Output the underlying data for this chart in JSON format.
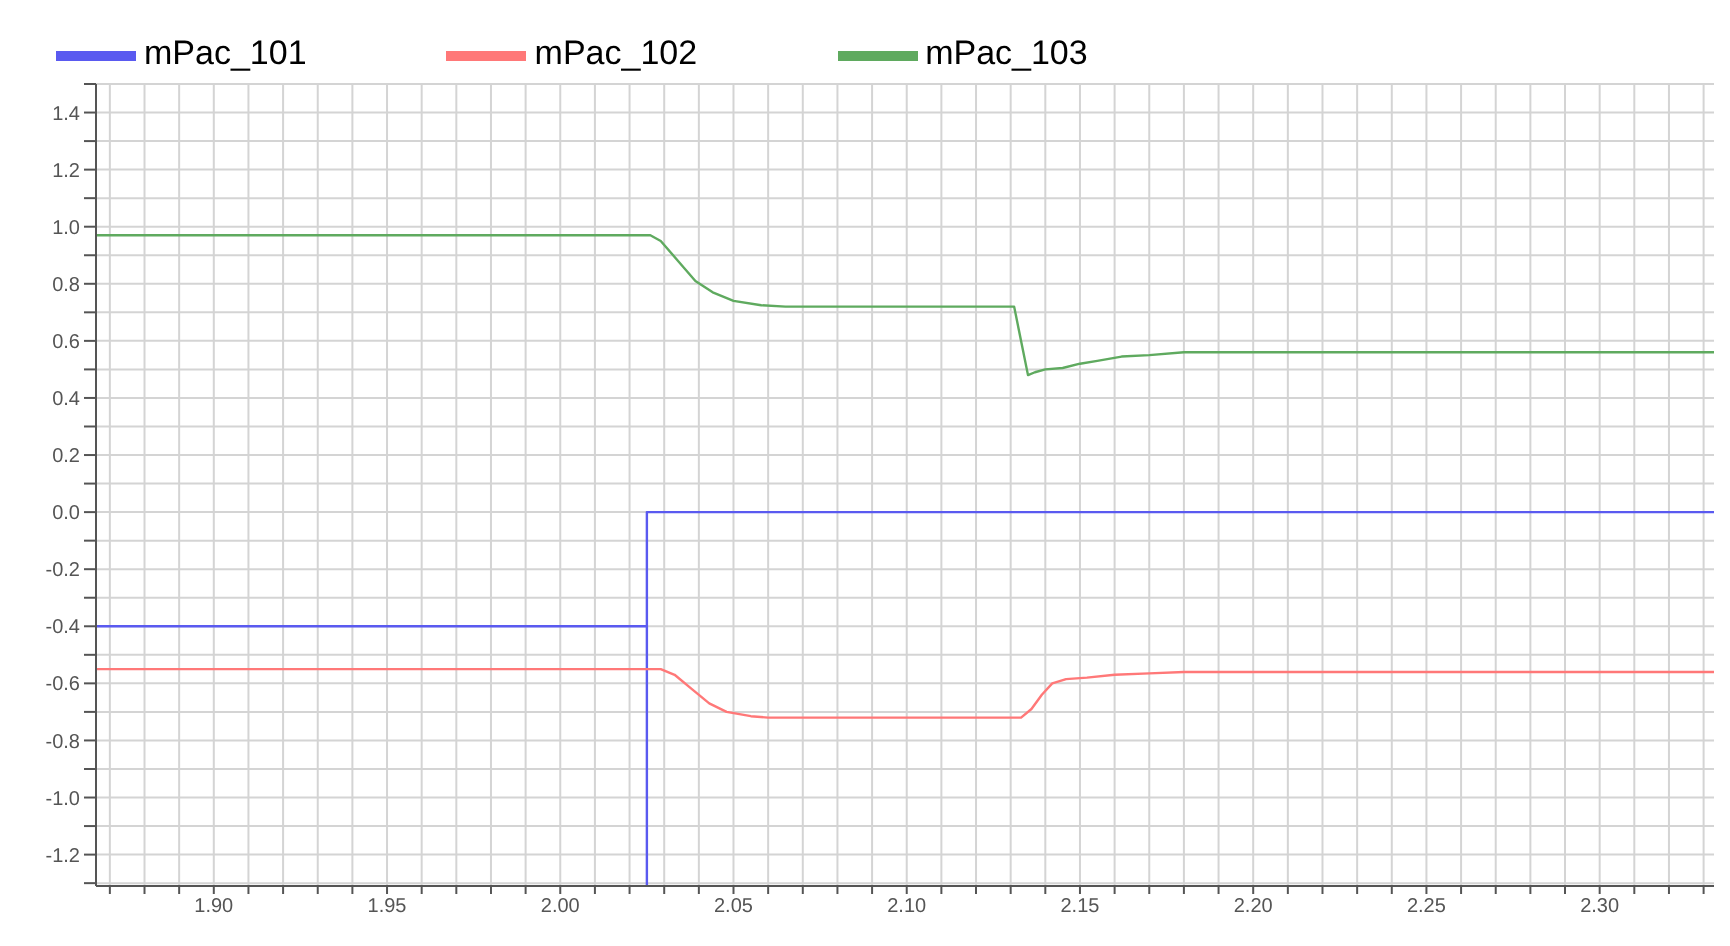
{
  "chart_data": {
    "type": "line",
    "legend": "top left",
    "grid": true,
    "line_style": "solid",
    "marker": "none",
    "xlim": [
      1.866,
      2.333
    ],
    "xticks": [
      {
        "value": 1.87,
        "label": null
      },
      {
        "value": 1.88,
        "label": null
      },
      {
        "value": 1.89,
        "label": null
      },
      {
        "value": 1.9,
        "label": "1.90"
      },
      {
        "value": 1.91,
        "label": null
      },
      {
        "value": 1.92,
        "label": null
      },
      {
        "value": 1.93,
        "label": null
      },
      {
        "value": 1.94,
        "label": null
      },
      {
        "value": 1.95,
        "label": "1.95"
      },
      {
        "value": 1.96,
        "label": null
      },
      {
        "value": 1.97,
        "label": null
      },
      {
        "value": 1.98,
        "label": null
      },
      {
        "value": 1.99,
        "label": null
      },
      {
        "value": 2.0,
        "label": "2.00"
      },
      {
        "value": 2.01,
        "label": null
      },
      {
        "value": 2.02,
        "label": null
      },
      {
        "value": 2.03,
        "label": null
      },
      {
        "value": 2.04,
        "label": null
      },
      {
        "value": 2.05,
        "label": "2.05"
      },
      {
        "value": 2.06,
        "label": null
      },
      {
        "value": 2.07,
        "label": null
      },
      {
        "value": 2.08,
        "label": null
      },
      {
        "value": 2.09,
        "label": null
      },
      {
        "value": 2.1,
        "label": "2.10"
      },
      {
        "value": 2.11,
        "label": null
      },
      {
        "value": 2.12,
        "label": null
      },
      {
        "value": 2.13,
        "label": null
      },
      {
        "value": 2.14,
        "label": null
      },
      {
        "value": 2.15,
        "label": "2.15"
      },
      {
        "value": 2.16,
        "label": null
      },
      {
        "value": 2.17,
        "label": null
      },
      {
        "value": 2.18,
        "label": null
      },
      {
        "value": 2.19,
        "label": null
      },
      {
        "value": 2.2,
        "label": "2.20"
      },
      {
        "value": 2.21,
        "label": null
      },
      {
        "value": 2.22,
        "label": null
      },
      {
        "value": 2.23,
        "label": null
      },
      {
        "value": 2.24,
        "label": null
      },
      {
        "value": 2.25,
        "label": "2.25"
      },
      {
        "value": 2.26,
        "label": null
      },
      {
        "value": 2.27,
        "label": null
      },
      {
        "value": 2.28,
        "label": null
      },
      {
        "value": 2.29,
        "label": null
      },
      {
        "value": 2.3,
        "label": "2.30"
      },
      {
        "value": 2.31,
        "label": null
      },
      {
        "value": 2.32,
        "label": null
      },
      {
        "value": 2.33,
        "label": null
      }
    ],
    "ylim": [
      -1.31,
      1.5
    ],
    "yticks": [
      {
        "value": -1.3,
        "label": null
      },
      {
        "value": -1.2,
        "label": "-1.2"
      },
      {
        "value": -1.1,
        "label": null
      },
      {
        "value": -1.0,
        "label": "-1.0"
      },
      {
        "value": -0.9,
        "label": null
      },
      {
        "value": -0.8,
        "label": "-0.8"
      },
      {
        "value": -0.7,
        "label": null
      },
      {
        "value": -0.6,
        "label": "-0.6"
      },
      {
        "value": -0.5,
        "label": null
      },
      {
        "value": -0.4,
        "label": "-0.4"
      },
      {
        "value": -0.3,
        "label": null
      },
      {
        "value": -0.2,
        "label": "-0.2"
      },
      {
        "value": -0.1,
        "label": null
      },
      {
        "value": 0,
        "label": "0.0"
      },
      {
        "value": 0.1,
        "label": null
      },
      {
        "value": 0.2,
        "label": "0.2"
      },
      {
        "value": 0.3,
        "label": null
      },
      {
        "value": 0.4,
        "label": "0.4"
      },
      {
        "value": 0.5,
        "label": null
      },
      {
        "value": 0.6,
        "label": "0.6"
      },
      {
        "value": 0.7,
        "label": null
      },
      {
        "value": 0.8,
        "label": "0.8"
      },
      {
        "value": 0.9,
        "label": null
      },
      {
        "value": 1.0,
        "label": "1.0"
      },
      {
        "value": 1.1,
        "label": null
      },
      {
        "value": 1.2,
        "label": "1.2"
      },
      {
        "value": 1.3,
        "label": null
      },
      {
        "value": 1.4,
        "label": "1.4"
      },
      {
        "value": 1.5,
        "label": null
      }
    ],
    "series": [
      {
        "name": "mPac_101",
        "color": "#5a5af0",
        "x": [
          1.866,
          2.025,
          2.025,
          2.025,
          2.333
        ],
        "values": [
          -0.4,
          -0.4,
          -1.31,
          0,
          0
        ]
      },
      {
        "name": "mPac_102",
        "color": "#ff7878",
        "x": [
          1.866,
          2.029,
          2.033,
          2.038,
          2.043,
          2.048,
          2.055,
          2.06,
          2.133,
          2.136,
          2.139,
          2.142,
          2.146,
          2.152,
          2.16,
          2.17,
          2.18,
          2.333
        ],
        "values": [
          -0.55,
          -0.55,
          -0.57,
          -0.62,
          -0.67,
          -0.7,
          -0.715,
          -0.72,
          -0.72,
          -0.69,
          -0.64,
          -0.6,
          -0.585,
          -0.58,
          -0.57,
          -0.565,
          -0.56,
          -0.56
        ]
      },
      {
        "name": "mPac_103",
        "color": "#5faa5f",
        "x": [
          1.866,
          2.026,
          2.029,
          2.034,
          2.039,
          2.044,
          2.05,
          2.058,
          2.065,
          2.131,
          2.135,
          2.137,
          2.14,
          2.145,
          2.15,
          2.155,
          2.162,
          2.17,
          2.18,
          2.333
        ],
        "values": [
          0.97,
          0.97,
          0.95,
          0.88,
          0.81,
          0.77,
          0.74,
          0.725,
          0.72,
          0.72,
          0.48,
          0.49,
          0.5,
          0.505,
          0.52,
          0.53,
          0.545,
          0.55,
          0.56,
          0.56
        ]
      }
    ]
  }
}
